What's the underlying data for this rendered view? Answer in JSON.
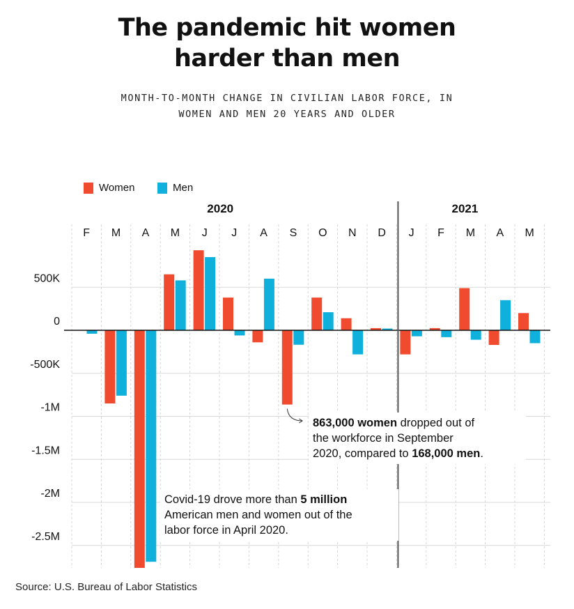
{
  "title_line1": "The pandemic hit women",
  "title_line2": "harder than men",
  "subtitle_line1": "MONTH-TO-MONTH CHANGE IN CIVILIAN LABOR FORCE, IN",
  "subtitle_line2": "WOMEN AND MEN 20 YEARS AND OLDER",
  "source": "Source: U.S. Bureau of Labor Statistics",
  "annotation_sept": {
    "part1_bold": "863,000 women",
    "part2": " dropped out of",
    "part3": "the workforce in September",
    "part4": "2020, compared to ",
    "part5_bold": "168,000 men",
    "part6": "."
  },
  "annotation_april": {
    "part1": "Covid-19 drove more than ",
    "part2_bold": "5 million",
    "part3": "American men and women out of the",
    "part4": "labor force in April 2020."
  },
  "chart_data": {
    "type": "bar",
    "title": "The pandemic hit women harder than men",
    "subtitle": "MONTH-TO-MONTH CHANGE IN CIVILIAN LABOR FORCE, IN WOMEN AND MEN 20 YEARS AND OLDER",
    "year_labels": [
      "2020",
      "2021"
    ],
    "categories": [
      "F",
      "M",
      "A",
      "M",
      "J",
      "J",
      "A",
      "S",
      "O",
      "N",
      "D",
      "J",
      "F",
      "M",
      "A",
      "M"
    ],
    "series": [
      {
        "name": "Women",
        "color": "#f04a2f",
        "values": [
          0,
          -850000,
          -2780000,
          650000,
          930000,
          380000,
          -140000,
          -863000,
          380000,
          140000,
          25000,
          -280000,
          25000,
          490000,
          -170000,
          200000
        ]
      },
      {
        "name": "Men",
        "color": "#0fb0dc",
        "values": [
          -40000,
          -760000,
          -2690000,
          580000,
          850000,
          -60000,
          600000,
          -168000,
          210000,
          -280000,
          20000,
          -70000,
          -80000,
          -110000,
          350000,
          -150000
        ]
      }
    ],
    "yticks": [
      500000,
      0,
      -500000,
      -1000000,
      -1500000,
      -2000000,
      -2500000
    ],
    "ytick_labels": [
      "500K",
      "0",
      "-500K",
      "-1M",
      "-1.5M",
      "-2M",
      "-2.5M"
    ],
    "ylim": [
      -2750000,
      1000000
    ],
    "legend": "top-left",
    "grid": true
  }
}
